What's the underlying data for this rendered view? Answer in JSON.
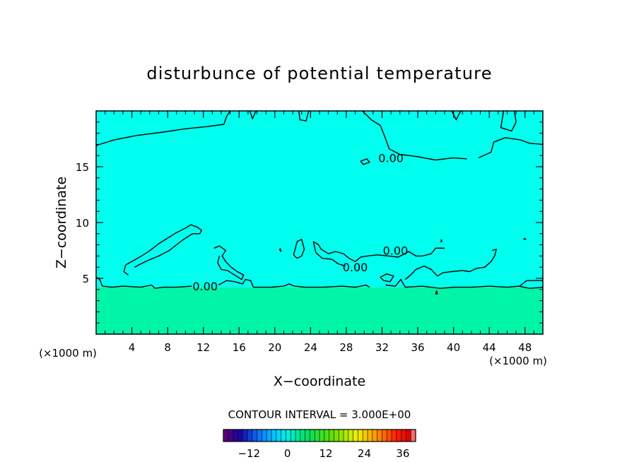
{
  "chart_data": {
    "type": "heatmap",
    "title": "disturbunce of potential temperature",
    "xlabel": "X−coordinate",
    "ylabel": "Z−coordinate",
    "x_unit_left": "(×1000 m)",
    "x_unit_right": "(×1000 m)",
    "xlim": [
      0,
      50
    ],
    "ylim": [
      0,
      20
    ],
    "xticks": [
      4,
      8,
      12,
      16,
      20,
      24,
      28,
      32,
      36,
      40,
      44,
      48
    ],
    "xtick_labels": [
      "4",
      "8",
      "12",
      "16",
      "20",
      "24",
      "28",
      "32",
      "36",
      "40",
      "44",
      "48"
    ],
    "yticks": [
      5,
      10,
      15
    ],
    "ytick_labels": [
      "5",
      "10",
      "15"
    ],
    "fields": [
      {
        "region": "upper layer",
        "z_range": [
          4.2,
          20
        ],
        "value": 0.0,
        "color": "#00ffee"
      },
      {
        "region": "lower layer",
        "z_range": [
          0,
          4.2
        ],
        "value": 3.0,
        "color": "#00f5a8"
      }
    ],
    "contour_labels": [
      {
        "text": "0.00",
        "x": 33.0,
        "z": 15.8
      },
      {
        "text": "0.00",
        "x": 33.5,
        "z": 7.5
      },
      {
        "text": "0.00",
        "x": 29.0,
        "z": 6.0
      },
      {
        "text": "0.00",
        "x": 12.2,
        "z": 4.3
      }
    ],
    "contour_interval_text": "CONTOUR INTERVAL = 3.000E+00",
    "colorbar": {
      "min": -20,
      "max": 40,
      "step": 1.5,
      "ticks": [
        -12,
        0,
        12,
        24,
        36
      ],
      "tick_labels": [
        "−12",
        "0",
        "12",
        "24",
        "36"
      ],
      "stops": [
        {
          "v": -20,
          "c": "#6a0070"
        },
        {
          "v": -15,
          "c": "#1a00a0"
        },
        {
          "v": -9,
          "c": "#1070ff"
        },
        {
          "v": -4,
          "c": "#00c8ff"
        },
        {
          "v": 0,
          "c": "#00f0e0"
        },
        {
          "v": 6,
          "c": "#00e060"
        },
        {
          "v": 14,
          "c": "#60e000"
        },
        {
          "v": 22,
          "c": "#f0f000"
        },
        {
          "v": 28,
          "c": "#ff9000"
        },
        {
          "v": 34,
          "c": "#ff2000"
        },
        {
          "v": 38,
          "c": "#e00000"
        },
        {
          "v": 40,
          "c": "#ffb0b0"
        }
      ]
    }
  }
}
